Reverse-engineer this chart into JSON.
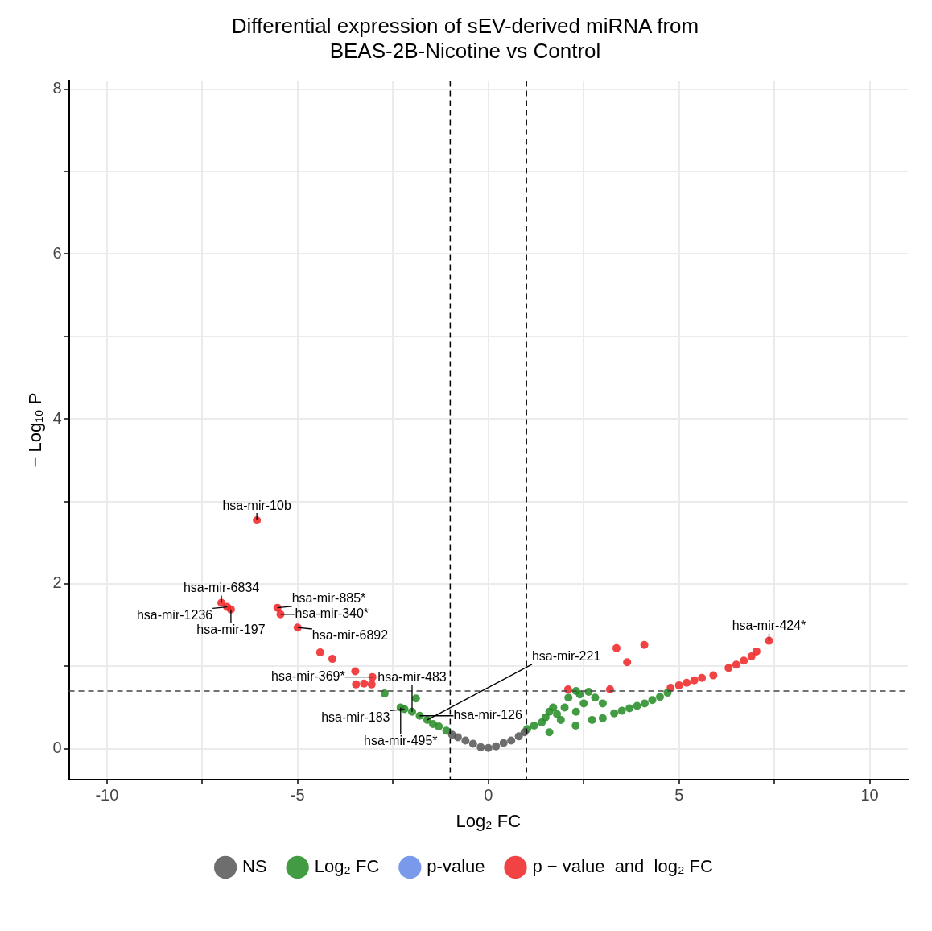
{
  "chart_data": {
    "type": "scatter",
    "title": "Differential expression of sEV-derived miRNA from\nBEAS-2B-Nicotine vs Control",
    "xlabel": "Log₂ FC",
    "ylabel": "− Log₁₀ P",
    "xlim": [
      -11,
      11
    ],
    "ylim": [
      -0.37,
      8.1
    ],
    "xticks": [
      -10,
      {
        "value": -7.5,
        "label": null
      },
      -5,
      {
        "value": -2.5,
        "label": null
      },
      0,
      {
        "value": 2.5,
        "label": null
      },
      5,
      {
        "value": 7.5,
        "label": null
      },
      10
    ],
    "yticks": [
      0,
      {
        "value": 1,
        "label": null
      },
      2,
      {
        "value": 3,
        "label": null
      },
      4,
      {
        "value": 5,
        "label": null
      },
      6,
      {
        "value": 7,
        "label": null
      },
      8
    ],
    "grid": true,
    "legend": "bottom",
    "marker": "circle",
    "series": [
      {
        "name": "NS",
        "color": "#555555",
        "x": [
          -0.95,
          -0.8,
          -0.6,
          -0.4,
          -0.2,
          0,
          0.2,
          0.4,
          0.6,
          0.8,
          0.95
        ],
        "values": [
          0.17,
          0.14,
          0.1,
          0.06,
          0.02,
          0.01,
          0.03,
          0.07,
          0.1,
          0.15,
          0.2
        ]
      },
      {
        "name": "Log₂ FC",
        "color": "#228b22",
        "x": [
          -2.72,
          -2.3,
          -2.2,
          -2.0,
          -1.9,
          -1.8,
          -1.6,
          -1.45,
          -1.3,
          -1.1,
          1.02,
          1.2,
          1.4,
          1.5,
          1.6,
          1.6,
          1.7,
          1.8,
          1.9,
          2.0,
          2.1,
          2.29,
          2.3,
          2.3,
          2.4,
          2.5,
          2.63,
          2.72,
          2.8,
          3.0,
          3.0,
          3.3,
          3.5,
          3.7,
          3.9,
          4.1,
          4.3,
          4.5,
          4.7
        ],
        "values": [
          0.67,
          0.5,
          0.48,
          0.45,
          0.61,
          0.4,
          0.35,
          0.3,
          0.27,
          0.22,
          0.24,
          0.28,
          0.32,
          0.38,
          0.45,
          0.2,
          0.5,
          0.42,
          0.35,
          0.5,
          0.62,
          0.28,
          0.45,
          0.7,
          0.66,
          0.55,
          0.69,
          0.35,
          0.62,
          0.55,
          0.37,
          0.43,
          0.46,
          0.49,
          0.52,
          0.55,
          0.59,
          0.63,
          0.68
        ]
      },
      {
        "name": "p-value",
        "color": "#6287e6"
      },
      {
        "name": "p − value  and  log₂ FC",
        "color": "#ee2222",
        "x": [
          -7.0,
          -6.85,
          -6.75,
          -6.07,
          -5.53,
          -5.45,
          -5.0,
          -4.41,
          -4.09,
          -3.49,
          -3.47,
          -3.26,
          -3.06,
          -3.04,
          2.09,
          3.19,
          3.36,
          3.64,
          4.09,
          4.78,
          5.0,
          5.2,
          5.4,
          5.6,
          5.9,
          6.3,
          6.5,
          6.7,
          6.9,
          7.03,
          7.36
        ],
        "values": [
          1.77,
          1.72,
          1.69,
          2.77,
          1.71,
          1.63,
          1.47,
          1.17,
          1.09,
          0.94,
          0.78,
          0.79,
          0.78,
          0.87,
          0.72,
          0.72,
          1.22,
          1.05,
          1.26,
          0.74,
          0.77,
          0.8,
          0.83,
          0.86,
          0.89,
          0.98,
          1.02,
          1.07,
          1.12,
          1.18,
          1.31
        ]
      }
    ],
    "ref_lines": [
      {
        "axis": "x",
        "value": -1,
        "line_style": "dashed"
      },
      {
        "axis": "x",
        "value": 1,
        "line_style": "dashed"
      },
      {
        "axis": "y",
        "value": 0.7,
        "line_style": "dashed"
      }
    ],
    "annotations": [
      {
        "text": "hsa-mir-10b",
        "x": -6.07,
        "y": 2.77
      },
      {
        "text": "hsa-mir-6834",
        "x": -7.0,
        "y": 1.77
      },
      {
        "text": "hsa-mir-1236",
        "x": -6.85,
        "y": 1.72
      },
      {
        "text": "hsa-mir-197",
        "x": -6.75,
        "y": 1.69
      },
      {
        "text": "hsa-mir-885*",
        "x": -5.53,
        "y": 1.71
      },
      {
        "text": "hsa-mir-340*",
        "x": -5.45,
        "y": 1.63
      },
      {
        "text": "hsa-mir-6892",
        "x": -5.0,
        "y": 1.47
      },
      {
        "text": "hsa-mir-183",
        "x": -2.2,
        "y": 0.48
      },
      {
        "text": "hsa-mir-369*",
        "x": -3.04,
        "y": 0.87
      },
      {
        "text": "hsa-mir-495*",
        "x": -2.3,
        "y": 0.5
      },
      {
        "text": "hsa-mir-483",
        "x": -2.0,
        "y": 0.45
      },
      {
        "text": "hsa-mir-126",
        "x": -1.8,
        "y": 0.4
      },
      {
        "text": "hsa-mir-221",
        "x": -1.6,
        "y": 0.35
      },
      {
        "text": "hsa-mir-424*",
        "x": 7.36,
        "y": 1.31
      }
    ]
  }
}
